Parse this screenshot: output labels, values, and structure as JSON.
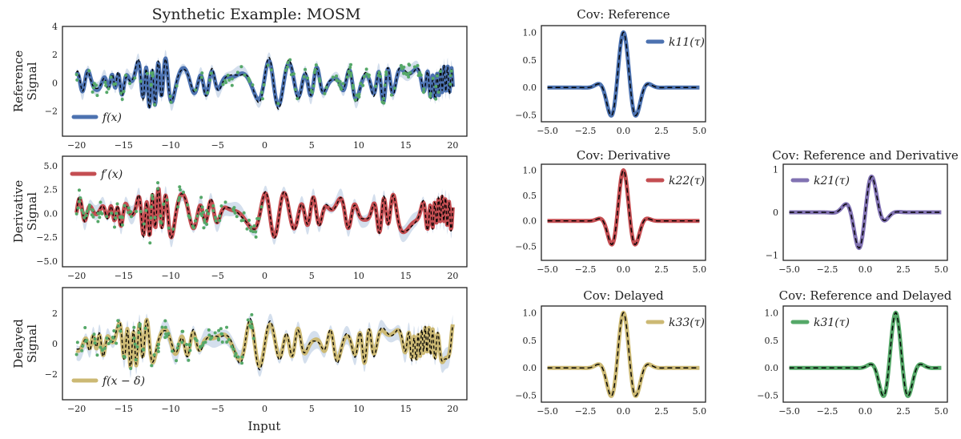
{
  "figure": {
    "title": "Synthetic Example: MOSM",
    "xlabel": "Input"
  },
  "colors": {
    "reference": "#4c72b0",
    "derivative": "#c44e52",
    "delayed": "#ccb974",
    "cross_derivative": "#8172b2",
    "cross_delayed": "#55a868",
    "observations": "#55a868",
    "band": "#b0c4de",
    "truth": "#000000"
  },
  "chart_data": [
    {
      "id": "signal-reference",
      "type": "line",
      "title": "Synthetic Example: MOSM",
      "ylabel_lines": [
        "Reference",
        "Signal"
      ],
      "xlabel": "",
      "xlim": [
        -21.5,
        21.5
      ],
      "ylim": [
        -3.8,
        4
      ],
      "xticks": [
        -20,
        -15,
        -10,
        -5,
        0,
        5,
        10,
        15,
        20
      ],
      "xtick_labels": [
        "−20",
        "−15",
        "−10",
        "−5",
        "0",
        "5",
        "10",
        "15",
        "20"
      ],
      "yticks": [
        -2,
        0,
        2,
        4
      ],
      "ytick_labels": [
        "−2",
        "0",
        "2",
        "4"
      ],
      "legend": "f(x)",
      "legend_position": "bottom-left",
      "series_color": "reference",
      "signal": {
        "amp": 1.15,
        "shift": 0,
        "dx0": 0.42,
        "dx1": 0.41,
        "phase": 0.0
      },
      "observed_until": 20,
      "n_points": 150,
      "band": 0.6
    },
    {
      "id": "signal-derivative",
      "type": "line",
      "title": "",
      "ylabel_lines": [
        "Derivative",
        "Signal"
      ],
      "xlabel": "",
      "xlim": [
        -21.5,
        21.5
      ],
      "ylim": [
        -5.6,
        6
      ],
      "xticks": [
        -20,
        -15,
        -10,
        -5,
        0,
        5,
        10,
        15,
        20
      ],
      "xtick_labels": [
        "−20",
        "−15",
        "−10",
        "−5",
        "0",
        "5",
        "10",
        "15",
        "20"
      ],
      "yticks": [
        -5,
        -2.5,
        0,
        2.5,
        5
      ],
      "ytick_labels": [
        "−5.0",
        "−2.5",
        "0.0",
        "2.5",
        "5.0"
      ],
      "legend": "f′(x)",
      "legend_position": "top-left",
      "series_color": "derivative",
      "signal": {
        "amp": 1.7,
        "shift": 0,
        "dx0": 0.44,
        "dx1": 0.43,
        "phase": 1.2
      },
      "observed_until": 0,
      "n_points": 110,
      "band": 1.0
    },
    {
      "id": "signal-delayed",
      "type": "line",
      "title": "",
      "ylabel_lines": [
        "Delayed",
        "Signal"
      ],
      "xlabel": "Input",
      "xlim": [
        -21.5,
        21.5
      ],
      "ylim": [
        -3.7,
        3.7
      ],
      "xticks": [
        -20,
        -15,
        -10,
        -5,
        0,
        5,
        10,
        15,
        20
      ],
      "xtick_labels": [
        "−20",
        "−15",
        "−10",
        "−5",
        "0",
        "5",
        "10",
        "15",
        "20"
      ],
      "yticks": [
        -2,
        0,
        2
      ],
      "ytick_labels": [
        "−2",
        "0",
        "2"
      ],
      "legend": "f(x − δ)",
      "legend_position": "bottom-left",
      "series_color": "delayed",
      "signal": {
        "amp": 1.05,
        "shift": -2,
        "dx0": 0.42,
        "dx1": 0.41,
        "phase": 0.0
      },
      "observed_until": -1,
      "n_points": 100,
      "band": 0.7
    },
    {
      "id": "cov-reference",
      "type": "line",
      "title": "Cov: Reference",
      "xlim": [
        -5.4,
        5.4
      ],
      "ylim": [
        -0.62,
        1.12
      ],
      "xticks": [
        -5,
        -2.5,
        0,
        2.5,
        5
      ],
      "xtick_labels": [
        "−5.0",
        "−2.5",
        "0.0",
        "2.5",
        "5.0"
      ],
      "yticks": [
        -0.5,
        0,
        0.5,
        1
      ],
      "ytick_labels": [
        "−0.5",
        "0.0",
        "0.5",
        "1.0"
      ],
      "legend": "k11(τ)",
      "legend_position": "top-right",
      "series_color": "reference",
      "kernel": {
        "kind": "cos",
        "shift": 0,
        "scale": 1,
        "w": 3.4,
        "var": 0.55
      }
    },
    {
      "id": "cov-derivative",
      "type": "line",
      "title": "Cov: Derivative",
      "xlim": [
        -5.4,
        5.4
      ],
      "ylim": [
        -0.78,
        1.12
      ],
      "xticks": [
        -5,
        -2.5,
        0,
        2.5,
        5
      ],
      "xtick_labels": [
        "−5.0",
        "−2.5",
        "0.0",
        "2.5",
        "5.0"
      ],
      "yticks": [
        -0.5,
        0,
        0.5,
        1
      ],
      "ytick_labels": [
        "−0.5",
        "0.0",
        "0.5",
        "1.0"
      ],
      "legend": "k22(τ)",
      "legend_position": "top-right",
      "series_color": "derivative",
      "kernel": {
        "kind": "cos",
        "shift": 0,
        "scale": 1,
        "w": 3.5,
        "var": 0.45
      }
    },
    {
      "id": "cov-reference-derivative",
      "type": "line",
      "title": "Cov: Reference and Derivative",
      "xlim": [
        -5.4,
        5.4
      ],
      "ylim": [
        -1.12,
        1.12
      ],
      "xticks": [
        -5,
        -2.5,
        0,
        2.5,
        5
      ],
      "xtick_labels": [
        "−5.0",
        "−2.5",
        "0.0",
        "2.5",
        "5.0"
      ],
      "yticks": [
        -1,
        0,
        1
      ],
      "ytick_labels": [
        "−1",
        "0",
        "1"
      ],
      "legend": "k21(τ)",
      "legend_position": "top-left",
      "series_color": "cross_derivative",
      "kernel": {
        "kind": "sin",
        "shift": 0,
        "scale": 1.05,
        "w": 3.4,
        "var": 0.5
      }
    },
    {
      "id": "cov-delayed",
      "type": "line",
      "title": "Cov: Delayed",
      "xlim": [
        -5.4,
        5.4
      ],
      "ylim": [
        -0.62,
        1.12
      ],
      "xticks": [
        -5,
        -2.5,
        0,
        2.5,
        5
      ],
      "xtick_labels": [
        "−5.0",
        "−2.5",
        "0.0",
        "2.5",
        "5.0"
      ],
      "yticks": [
        -0.5,
        0,
        0.5,
        1
      ],
      "ytick_labels": [
        "−0.5",
        "0.0",
        "0.5",
        "1.0"
      ],
      "legend": "k33(τ)",
      "legend_position": "top-right",
      "series_color": "delayed",
      "kernel": {
        "kind": "cos",
        "shift": 0,
        "scale": 1,
        "w": 3.4,
        "var": 0.55
      }
    },
    {
      "id": "cov-reference-delayed",
      "type": "line",
      "title": "Cov: Reference and Delayed",
      "xlim": [
        -5.4,
        5.4
      ],
      "ylim": [
        -0.62,
        1.12
      ],
      "xticks": [
        -5,
        -2.5,
        0,
        2.5,
        5
      ],
      "xtick_labels": [
        "−5.0",
        "−2.5",
        "0.0",
        "2.5",
        "5.0"
      ],
      "yticks": [
        -0.5,
        0,
        0.5,
        1
      ],
      "ytick_labels": [
        "−0.5",
        "0.0",
        "0.5",
        "1.0"
      ],
      "legend": "k31(τ)",
      "legend_position": "top-left",
      "series_color": "cross_delayed",
      "kernel": {
        "kind": "cos",
        "shift": 2,
        "scale": 1,
        "w": 3.4,
        "var": 0.55
      }
    }
  ]
}
